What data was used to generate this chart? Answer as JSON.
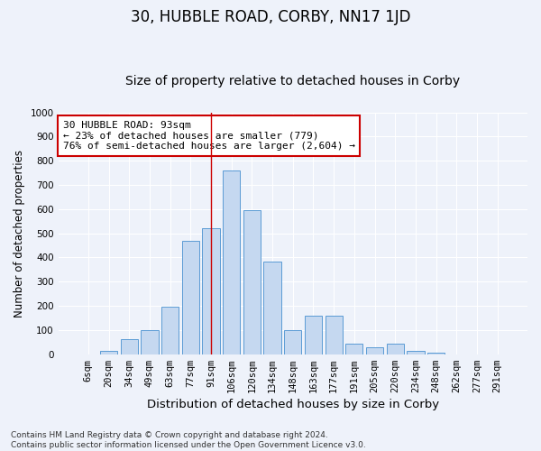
{
  "title": "30, HUBBLE ROAD, CORBY, NN17 1JD",
  "subtitle": "Size of property relative to detached houses in Corby",
  "xlabel": "Distribution of detached houses by size in Corby",
  "ylabel": "Number of detached properties",
  "categories": [
    "6sqm",
    "20sqm",
    "34sqm",
    "49sqm",
    "63sqm",
    "77sqm",
    "91sqm",
    "106sqm",
    "120sqm",
    "134sqm",
    "148sqm",
    "163sqm",
    "177sqm",
    "191sqm",
    "205sqm",
    "220sqm",
    "234sqm",
    "248sqm",
    "262sqm",
    "277sqm",
    "291sqm"
  ],
  "values": [
    0,
    13,
    62,
    100,
    198,
    470,
    520,
    760,
    597,
    383,
    100,
    160,
    160,
    42,
    28,
    43,
    13,
    7,
    0,
    0,
    0
  ],
  "bar_color": "#c5d8f0",
  "bar_edge_color": "#5b9bd5",
  "background_color": "#eef2fa",
  "grid_color": "#ffffff",
  "vline_x_idx": 6,
  "vline_color": "#cc0000",
  "annotation_text": "30 HUBBLE ROAD: 93sqm\n← 23% of detached houses are smaller (779)\n76% of semi-detached houses are larger (2,604) →",
  "annotation_box_facecolor": "#ffffff",
  "annotation_box_edgecolor": "#cc0000",
  "ylim": [
    0,
    1000
  ],
  "yticks": [
    0,
    100,
    200,
    300,
    400,
    500,
    600,
    700,
    800,
    900,
    1000
  ],
  "footnote": "Contains HM Land Registry data © Crown copyright and database right 2024.\nContains public sector information licensed under the Open Government Licence v3.0.",
  "title_fontsize": 12,
  "subtitle_fontsize": 10,
  "xlabel_fontsize": 9.5,
  "ylabel_fontsize": 8.5,
  "tick_fontsize": 7.5,
  "annotation_fontsize": 8,
  "footnote_fontsize": 6.5
}
